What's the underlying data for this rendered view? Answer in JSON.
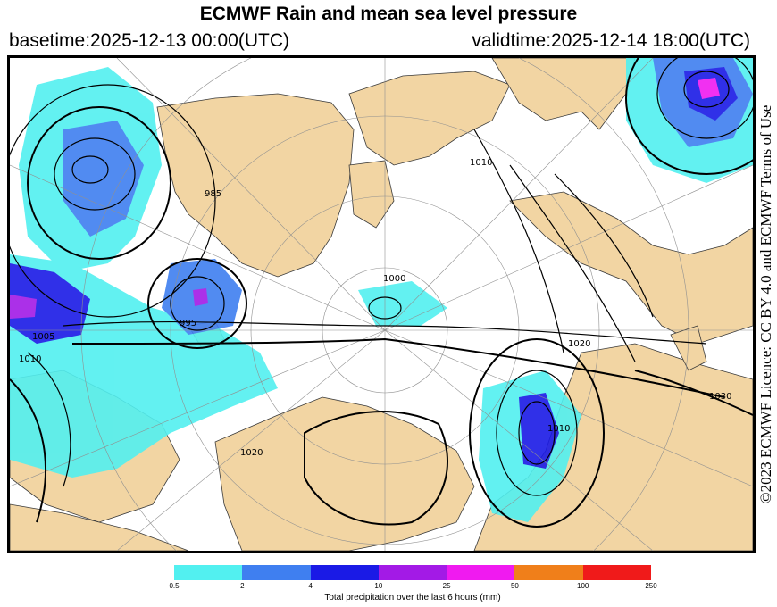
{
  "title": "ECMWF Rain and mean sea level pressure",
  "basetime": "basetime:2025-12-13 00:00(UTC)",
  "validtime": "validtime:2025-12-14 18:00(UTC)",
  "license": "©2023 ECMWF Licence: CC BY 4.0 and ECMWF Terms of Use",
  "colors": {
    "land": "#f2d5a3",
    "sea": "#ffffff",
    "isobar": "#000000",
    "graticule": "#909090"
  },
  "isobar_labels": [
    "1000",
    "1020",
    "1030",
    "1010",
    "1010",
    "1010",
    "1020",
    "985",
    "995",
    "1005"
  ],
  "legend": {
    "label": "Total precipitation over the last 6 hours (mm)",
    "ticks": [
      "0.5",
      "2",
      "4",
      "10",
      "25",
      "50",
      "100",
      "250"
    ],
    "colors": [
      "#52f0f0",
      "#3f7ff0",
      "#1a1ae6",
      "#a31ae6",
      "#f01af0",
      "#f07f1a",
      "#f01a1a"
    ]
  }
}
